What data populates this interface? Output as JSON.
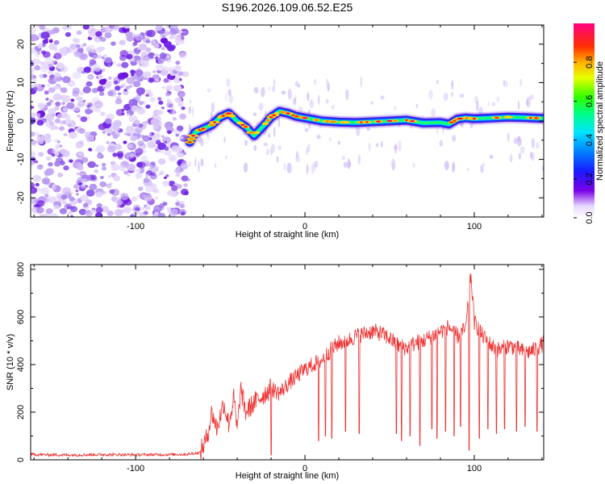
{
  "figure_title": "S196.2026.109.06.52.E25",
  "chart_data": [
    {
      "type": "heatmap",
      "title": "S196.2026.109.06.52.E25",
      "xlabel": "Height of straight line (km)",
      "ylabel": "Frequency (Hz)",
      "xlim": [
        -162,
        141
      ],
      "ylim": [
        -25,
        25
      ],
      "xticks": [
        -100,
        0,
        100
      ],
      "yticks": [
        -20,
        -10,
        0,
        10,
        20
      ],
      "noise_region_x": [
        -162,
        -70
      ],
      "ridge": {
        "x": [
          -68,
          -65,
          -60,
          -55,
          -50,
          -45,
          -40,
          -35,
          -30,
          -25,
          -20,
          -15,
          -10,
          -5,
          0,
          10,
          20,
          30,
          40,
          50,
          60,
          70,
          80,
          85,
          90,
          95,
          100,
          110,
          120,
          130,
          140
        ],
        "freq": [
          -5.5,
          -3,
          -2,
          -1,
          1,
          2,
          0,
          -1.5,
          -3.8,
          -1.5,
          1,
          2.5,
          2,
          1.2,
          0.8,
          0,
          -0.3,
          -0.4,
          -0.2,
          0,
          0.2,
          -0.5,
          -0.4,
          -0.8,
          0.5,
          0.8,
          0.6,
          0.8,
          1,
          0.9,
          0.7
        ]
      },
      "colorbar": {
        "label": "Normalized spectral amplitude",
        "range": [
          0,
          1
        ],
        "ticks": [
          0.0,
          0.2,
          0.4,
          0.6,
          0.8
        ]
      }
    },
    {
      "type": "line",
      "xlabel": "Height of straight line (km)",
      "ylabel": "SNR (10 * v/v)",
      "xlim": [
        -162,
        141
      ],
      "ylim": [
        0,
        820
      ],
      "xticks": [
        -100,
        0,
        100
      ],
      "yticks": [
        0,
        200,
        400,
        600,
        800
      ],
      "color": "#ee3333",
      "series": [
        {
          "name": "SNR",
          "x": [
            -162,
            -140,
            -120,
            -100,
            -80,
            -70,
            -62,
            -58,
            -55,
            -52,
            -48,
            -45,
            -42,
            -40,
            -38,
            -35,
            -30,
            -25,
            -20,
            -15,
            -10,
            -5,
            0,
            5,
            10,
            15,
            20,
            25,
            30,
            35,
            40,
            45,
            50,
            55,
            60,
            65,
            70,
            75,
            80,
            85,
            90,
            95,
            98,
            100,
            105,
            110,
            115,
            120,
            125,
            130,
            135,
            141
          ],
          "y": [
            22,
            20,
            22,
            21,
            22,
            23,
            30,
            90,
            200,
            130,
            240,
            150,
            260,
            120,
            300,
            200,
            240,
            270,
            300,
            280,
            320,
            350,
            380,
            400,
            420,
            460,
            490,
            500,
            520,
            530,
            540,
            530,
            510,
            480,
            470,
            490,
            500,
            520,
            540,
            560,
            520,
            550,
            780,
            580,
            520,
            480,
            460,
            480,
            470,
            450,
            460,
            490
          ]
        }
      ],
      "dips": [
        {
          "x": -20,
          "y": 20
        },
        {
          "x": 8,
          "y": 80
        },
        {
          "x": 12,
          "y": 100
        },
        {
          "x": 16,
          "y": 90
        },
        {
          "x": 24,
          "y": 120
        },
        {
          "x": 32,
          "y": 110
        },
        {
          "x": 54,
          "y": 110
        },
        {
          "x": 57,
          "y": 80
        },
        {
          "x": 62,
          "y": 100
        },
        {
          "x": 68,
          "y": 60
        },
        {
          "x": 75,
          "y": 130
        },
        {
          "x": 78,
          "y": 90
        },
        {
          "x": 83,
          "y": 120
        },
        {
          "x": 88,
          "y": 100
        },
        {
          "x": 92,
          "y": 140
        },
        {
          "x": 97,
          "y": 40
        },
        {
          "x": 103,
          "y": 90
        },
        {
          "x": 108,
          "y": 130
        },
        {
          "x": 113,
          "y": 110
        },
        {
          "x": 118,
          "y": 130
        },
        {
          "x": 125,
          "y": 120
        },
        {
          "x": 130,
          "y": 140
        },
        {
          "x": 137,
          "y": 120
        }
      ]
    }
  ]
}
